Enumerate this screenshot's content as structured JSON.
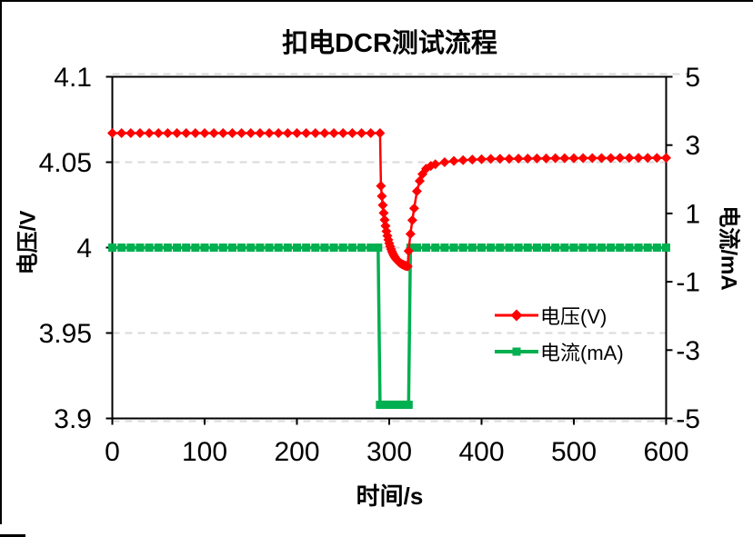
{
  "chart_data": {
    "type": "line",
    "title": "扣电DCR测试流程",
    "xlabel": "时间/s",
    "ylabel_left": "电压/V",
    "ylabel_right": "电流/mA",
    "x_range": [
      0,
      600
    ],
    "y_left_range": [
      3.9,
      4.1
    ],
    "y_right_range": [
      -5,
      5
    ],
    "xtick_labels": [
      "0",
      "100",
      "200",
      "300",
      "400",
      "500",
      "600"
    ],
    "ytick_left_labels": [
      "4.1",
      "4.05",
      "4",
      "3.95",
      "3.9"
    ],
    "ytick_right_labels": [
      "5",
      "3",
      "1",
      "-1",
      "-3",
      "-5"
    ],
    "grid": {
      "horizontal_dashed": true,
      "color": "#D9D9D9"
    },
    "colors": {
      "voltage": "#FF0000",
      "current": "#00B050",
      "axis": "#000000",
      "background": "#FFFFFF"
    },
    "legend": {
      "position": "inside-middle-right",
      "entries": [
        {
          "label": "电压(V)",
          "color": "#FF0000",
          "marker": "diamond"
        },
        {
          "label": "电流(mA)",
          "color": "#00B050",
          "marker": "square"
        }
      ]
    },
    "series": [
      {
        "name": "电压(V)",
        "axis": "left",
        "color": "#FF0000",
        "marker": "diamond",
        "points": [
          [
            0,
            4.067
          ],
          [
            10,
            4.067
          ],
          [
            20,
            4.067
          ],
          [
            30,
            4.067
          ],
          [
            40,
            4.067
          ],
          [
            50,
            4.067
          ],
          [
            60,
            4.067
          ],
          [
            70,
            4.067
          ],
          [
            80,
            4.067
          ],
          [
            90,
            4.067
          ],
          [
            100,
            4.067
          ],
          [
            110,
            4.067
          ],
          [
            120,
            4.067
          ],
          [
            130,
            4.067
          ],
          [
            140,
            4.067
          ],
          [
            150,
            4.067
          ],
          [
            160,
            4.067
          ],
          [
            170,
            4.067
          ],
          [
            180,
            4.067
          ],
          [
            190,
            4.067
          ],
          [
            200,
            4.067
          ],
          [
            210,
            4.067
          ],
          [
            220,
            4.067
          ],
          [
            230,
            4.067
          ],
          [
            240,
            4.067
          ],
          [
            250,
            4.067
          ],
          [
            260,
            4.067
          ],
          [
            270,
            4.067
          ],
          [
            280,
            4.067
          ],
          [
            290,
            4.067
          ],
          [
            291,
            4.0361
          ],
          [
            292,
            4.0301
          ],
          [
            293,
            4.0249
          ],
          [
            294,
            4.0203
          ],
          [
            295,
            4.0162
          ],
          [
            296,
            4.0127
          ],
          [
            297,
            4.0096
          ],
          [
            298,
            4.0069
          ],
          [
            299,
            4.0046
          ],
          [
            300,
            4.0025
          ],
          [
            301,
            4.0007
          ],
          [
            302,
            3.9991
          ],
          [
            303,
            3.9977
          ],
          [
            304,
            3.9965
          ],
          [
            305,
            3.9954
          ],
          [
            306,
            3.9945
          ],
          [
            307,
            3.9937
          ],
          [
            308,
            3.993
          ],
          [
            309,
            3.9924
          ],
          [
            310,
            3.9918
          ],
          [
            311,
            3.9913
          ],
          [
            312,
            3.9909
          ],
          [
            313,
            3.9906
          ],
          [
            314,
            3.9902
          ],
          [
            315,
            3.99
          ],
          [
            316,
            3.9897
          ],
          [
            317,
            3.9895
          ],
          [
            318,
            3.9893
          ],
          [
            319,
            3.9892
          ],
          [
            320,
            3.989
          ],
          [
            321,
            3.998
          ],
          [
            323,
            4.008
          ],
          [
            325,
            4.016
          ],
          [
            327,
            4.023
          ],
          [
            330,
            4.033
          ],
          [
            333,
            4.039
          ],
          [
            336,
            4.043
          ],
          [
            340,
            4.0462
          ],
          [
            345,
            4.0478
          ],
          [
            350,
            4.0488
          ],
          [
            360,
            4.05
          ],
          [
            370,
            4.0507
          ],
          [
            380,
            4.0512
          ],
          [
            390,
            4.0515
          ],
          [
            400,
            4.0517
          ],
          [
            410,
            4.0519
          ],
          [
            420,
            4.052
          ],
          [
            430,
            4.052
          ],
          [
            440,
            4.0521
          ],
          [
            450,
            4.0521
          ],
          [
            460,
            4.0522
          ],
          [
            470,
            4.0522
          ],
          [
            480,
            4.0523
          ],
          [
            490,
            4.0523
          ],
          [
            500,
            4.0523
          ],
          [
            510,
            4.0524
          ],
          [
            520,
            4.0524
          ],
          [
            530,
            4.0524
          ],
          [
            540,
            4.0524
          ],
          [
            550,
            4.0525
          ],
          [
            560,
            4.0525
          ],
          [
            570,
            4.0525
          ],
          [
            580,
            4.0525
          ],
          [
            590,
            4.0525
          ],
          [
            600,
            4.0525
          ]
        ]
      },
      {
        "name": "电流(mA)",
        "axis": "right",
        "color": "#00B050",
        "marker": "square",
        "points": [
          [
            0,
            0
          ],
          [
            10,
            0
          ],
          [
            20,
            0
          ],
          [
            30,
            0
          ],
          [
            40,
            0
          ],
          [
            50,
            0
          ],
          [
            60,
            0
          ],
          [
            70,
            0
          ],
          [
            80,
            0
          ],
          [
            90,
            0
          ],
          [
            100,
            0
          ],
          [
            110,
            0
          ],
          [
            120,
            0
          ],
          [
            130,
            0
          ],
          [
            140,
            0
          ],
          [
            150,
            0
          ],
          [
            160,
            0
          ],
          [
            170,
            0
          ],
          [
            180,
            0
          ],
          [
            190,
            0
          ],
          [
            200,
            0
          ],
          [
            210,
            0
          ],
          [
            220,
            0
          ],
          [
            230,
            0
          ],
          [
            240,
            0
          ],
          [
            250,
            0
          ],
          [
            260,
            0
          ],
          [
            270,
            0
          ],
          [
            280,
            0
          ],
          [
            288,
            0
          ],
          [
            290,
            -4.6
          ],
          [
            292,
            -4.6
          ],
          [
            294,
            -4.6
          ],
          [
            296,
            -4.6
          ],
          [
            298,
            -4.6
          ],
          [
            300,
            -4.6
          ],
          [
            302,
            -4.6
          ],
          [
            304,
            -4.6
          ],
          [
            306,
            -4.6
          ],
          [
            308,
            -4.6
          ],
          [
            310,
            -4.6
          ],
          [
            312,
            -4.6
          ],
          [
            314,
            -4.6
          ],
          [
            316,
            -4.6
          ],
          [
            318,
            -4.6
          ],
          [
            320,
            -4.6
          ],
          [
            321,
            -4.6
          ],
          [
            323,
            0
          ],
          [
            330,
            0
          ],
          [
            340,
            0
          ],
          [
            350,
            0
          ],
          [
            360,
            0
          ],
          [
            370,
            0
          ],
          [
            380,
            0
          ],
          [
            390,
            0
          ],
          [
            400,
            0
          ],
          [
            410,
            0
          ],
          [
            420,
            0
          ],
          [
            430,
            0
          ],
          [
            440,
            0
          ],
          [
            450,
            0
          ],
          [
            460,
            0
          ],
          [
            470,
            0
          ],
          [
            480,
            0
          ],
          [
            490,
            0
          ],
          [
            500,
            0
          ],
          [
            510,
            0
          ],
          [
            520,
            0
          ],
          [
            530,
            0
          ],
          [
            540,
            0
          ],
          [
            550,
            0
          ],
          [
            560,
            0
          ],
          [
            570,
            0
          ],
          [
            580,
            0
          ],
          [
            590,
            0
          ],
          [
            600,
            0
          ]
        ]
      }
    ]
  }
}
